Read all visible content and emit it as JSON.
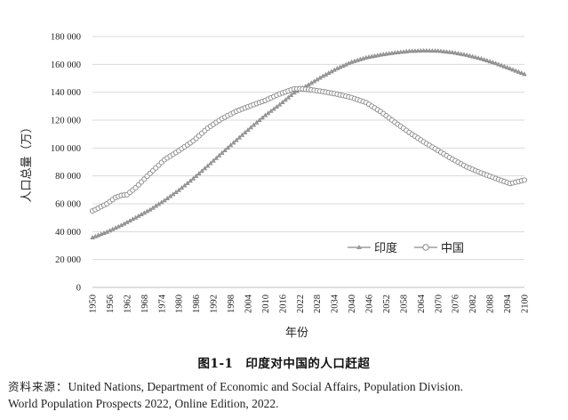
{
  "chart_data": {
    "type": "line",
    "title": "",
    "xlabel": "年份",
    "ylabel": "人口总量（万）",
    "xlim": [
      1950,
      2100
    ],
    "ylim": [
      0,
      180000
    ],
    "yticks": [
      0,
      20000,
      40000,
      60000,
      80000,
      100000,
      120000,
      140000,
      160000,
      180000
    ],
    "ytick_labels": [
      "0",
      "20 000",
      "40 000",
      "60 000",
      "80 000",
      "100 000",
      "120 000",
      "140 000",
      "160 000",
      "180 000"
    ],
    "xticks": [
      "1950",
      "1956",
      "1962",
      "1968",
      "1974",
      "1980",
      "1986",
      "1992",
      "1998",
      "2004",
      "2010",
      "2016",
      "2022",
      "2028",
      "2034",
      "2040",
      "2046",
      "2052",
      "2058",
      "2064",
      "2070",
      "2076",
      "2082",
      "2088",
      "2094",
      "2100"
    ],
    "grid": "horizontal",
    "legend_position": "right, above x-axis",
    "series": [
      {
        "name": "印度",
        "marker": "triangle",
        "color": "#8c8c8c",
        "x": [
          1950,
          1955,
          1960,
          1965,
          1970,
          1975,
          1980,
          1985,
          1990,
          1995,
          2000,
          2005,
          2010,
          2015,
          2020,
          2025,
          2030,
          2035,
          2040,
          2045,
          2050,
          2055,
          2060,
          2065,
          2070,
          2075,
          2080,
          2085,
          2090,
          2095,
          2100
        ],
        "values": [
          35700,
          39700,
          44500,
          50000,
          55700,
          62300,
          69700,
          78000,
          87100,
          96400,
          105600,
          114700,
          123400,
          131000,
          139600,
          145300,
          151500,
          157000,
          161600,
          164800,
          166800,
          168300,
          169400,
          169800,
          169600,
          168500,
          166600,
          164000,
          160700,
          156900,
          152900
        ]
      },
      {
        "name": "中国",
        "marker": "circle",
        "color": "#8c8c8c",
        "x": [
          1950,
          1955,
          1958,
          1960,
          1962,
          1965,
          1970,
          1975,
          1980,
          1985,
          1990,
          1995,
          2000,
          2005,
          2010,
          2015,
          2020,
          2022,
          2025,
          2030,
          2035,
          2040,
          2045,
          2050,
          2055,
          2060,
          2065,
          2070,
          2075,
          2080,
          2085,
          2090,
          2095,
          2100
        ],
        "values": [
          54800,
          60000,
          64500,
          66000,
          66500,
          71500,
          81800,
          91600,
          98100,
          105100,
          114300,
          121100,
          126400,
          130400,
          134100,
          138800,
          142400,
          142600,
          142000,
          140500,
          138600,
          136200,
          132600,
          126200,
          118500,
          111200,
          104400,
          98200,
          92000,
          86400,
          82100,
          78200,
          74500,
          77000
        ]
      }
    ]
  },
  "caption": "图1-1　印度对中国的人口赶超",
  "source": {
    "label": "资料来源：",
    "line1": "United Nations, Department of Economic and Social Affairs, Population Division.",
    "line2": "World Population Prospects 2022, Online Edition, 2022."
  }
}
